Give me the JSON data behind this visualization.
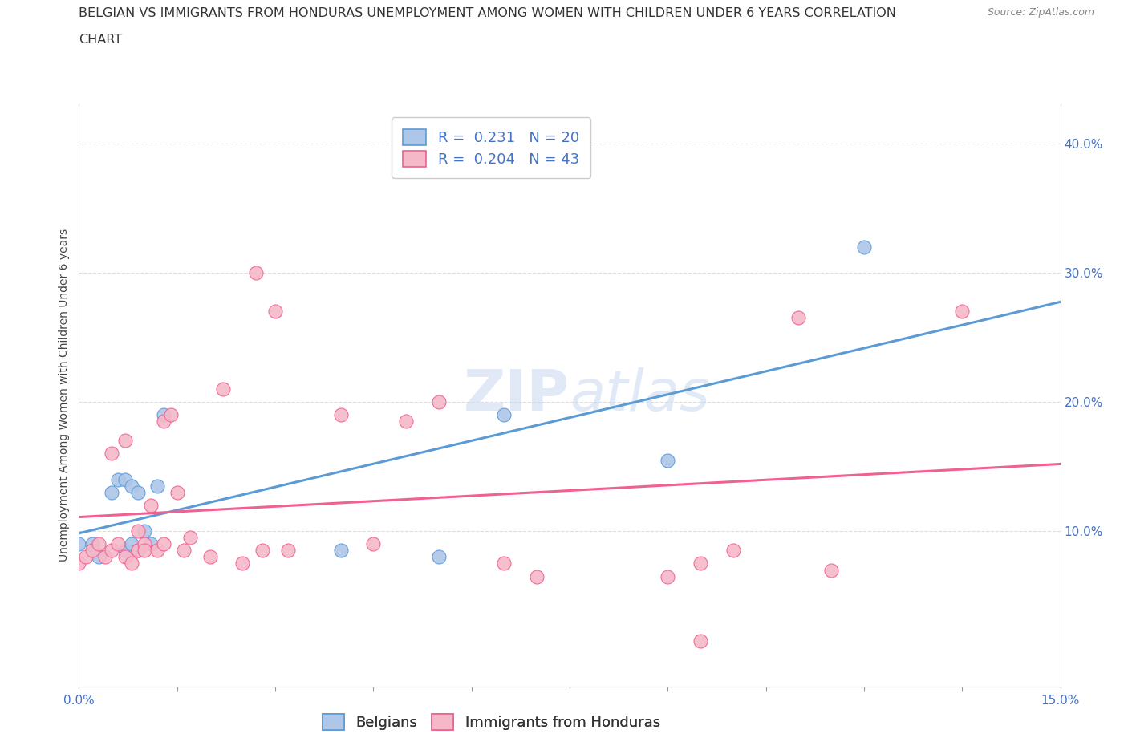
{
  "title_line1": "BELGIAN VS IMMIGRANTS FROM HONDURAS UNEMPLOYMENT AMONG WOMEN WITH CHILDREN UNDER 6 YEARS CORRELATION",
  "title_line2": "CHART",
  "source": "Source: ZipAtlas.com",
  "ylabel": "Unemployment Among Women with Children Under 6 years",
  "xlim": [
    0.0,
    0.15
  ],
  "ylim": [
    -0.02,
    0.43
  ],
  "ytick_values": [
    0.1,
    0.2,
    0.3,
    0.4
  ],
  "ytick_labels": [
    "10.0%",
    "20.0%",
    "30.0%",
    "40.0%"
  ],
  "xtick_values": [
    0.0,
    0.015,
    0.03,
    0.045,
    0.06,
    0.075,
    0.09,
    0.105,
    0.12,
    0.135,
    0.15
  ],
  "xtick_labels_show": {
    "0.0": "0.0%",
    "0.15": "15.0%"
  },
  "belgian_R": "0.231",
  "belgian_N": "20",
  "honduras_R": "0.204",
  "honduras_N": "43",
  "belgian_color": "#aec6e8",
  "honduras_color": "#f5b8c8",
  "belgian_edge_color": "#5b9bd5",
  "honduras_edge_color": "#f06090",
  "belgian_line_color": "#5b9bd5",
  "honduras_line_color": "#f06090",
  "legend_label_belgian": "Belgians",
  "legend_label_honduras": "Immigrants from Honduras",
  "belgian_points_x": [
    0.0,
    0.002,
    0.003,
    0.005,
    0.006,
    0.007,
    0.007,
    0.008,
    0.008,
    0.009,
    0.009,
    0.01,
    0.011,
    0.012,
    0.013,
    0.04,
    0.055,
    0.065,
    0.09,
    0.12
  ],
  "belgian_points_y": [
    0.09,
    0.09,
    0.08,
    0.13,
    0.14,
    0.085,
    0.14,
    0.09,
    0.135,
    0.085,
    0.13,
    0.1,
    0.09,
    0.135,
    0.19,
    0.085,
    0.08,
    0.19,
    0.155,
    0.32
  ],
  "honduras_points_x": [
    0.0,
    0.001,
    0.002,
    0.003,
    0.004,
    0.005,
    0.005,
    0.006,
    0.007,
    0.007,
    0.008,
    0.009,
    0.009,
    0.01,
    0.01,
    0.011,
    0.012,
    0.013,
    0.013,
    0.014,
    0.015,
    0.016,
    0.017,
    0.02,
    0.022,
    0.025,
    0.027,
    0.028,
    0.03,
    0.032,
    0.04,
    0.045,
    0.05,
    0.055,
    0.065,
    0.07,
    0.09,
    0.095,
    0.095,
    0.1,
    0.11,
    0.115,
    0.135
  ],
  "honduras_points_y": [
    0.075,
    0.08,
    0.085,
    0.09,
    0.08,
    0.085,
    0.16,
    0.09,
    0.08,
    0.17,
    0.075,
    0.085,
    0.1,
    0.09,
    0.085,
    0.12,
    0.085,
    0.185,
    0.09,
    0.19,
    0.13,
    0.085,
    0.095,
    0.08,
    0.21,
    0.075,
    0.3,
    0.085,
    0.27,
    0.085,
    0.19,
    0.09,
    0.185,
    0.2,
    0.075,
    0.065,
    0.065,
    0.075,
    0.015,
    0.085,
    0.265,
    0.07,
    0.27
  ],
  "background_color": "#ffffff",
  "grid_color": "#dddddd",
  "watermark_text": "ZIP",
  "watermark_text2": "atlas",
  "title_fontsize": 11.5,
  "axis_label_fontsize": 10,
  "tick_fontsize": 11,
  "legend_fontsize": 13,
  "source_fontsize": 9
}
